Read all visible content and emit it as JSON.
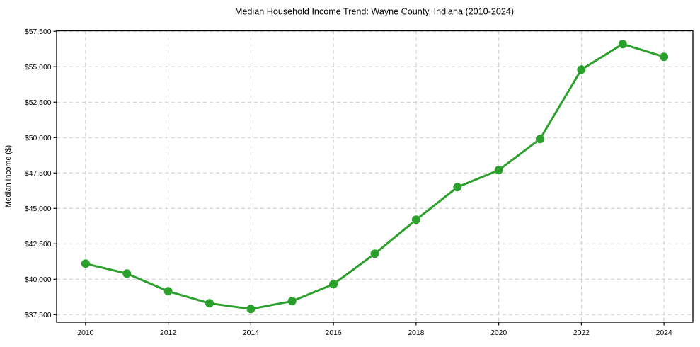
{
  "chart_data": {
    "type": "line",
    "title": "Median Household Income Trend: Wayne County, Indiana (2010-2024)",
    "xlabel": "",
    "ylabel": "Median Income ($)",
    "x": [
      2010,
      2011,
      2012,
      2013,
      2014,
      2015,
      2016,
      2017,
      2018,
      2019,
      2020,
      2021,
      2022,
      2023,
      2024
    ],
    "values": [
      41100,
      40400,
      39150,
      38300,
      37900,
      38450,
      39650,
      41800,
      44200,
      46500,
      47700,
      49900,
      54800,
      56600,
      55700
    ],
    "xlim": [
      2009.3,
      2024.7
    ],
    "ylim": [
      36965,
      57535
    ],
    "xticks": {
      "values": [
        2010,
        2012,
        2014,
        2016,
        2018,
        2020,
        2022,
        2024
      ],
      "labels": [
        "2010",
        "2012",
        "2014",
        "2016",
        "2018",
        "2020",
        "2022",
        "2024"
      ]
    },
    "yticks": {
      "values": [
        37500,
        40000,
        42500,
        45000,
        47500,
        50000,
        52500,
        55000,
        57500
      ],
      "labels": [
        "$37,500",
        "$40,000",
        "$42,500",
        "$45,000",
        "$47,500",
        "$50,000",
        "$52,500",
        "$55,000",
        "$57,500"
      ]
    },
    "grid": "dashed-both-axes",
    "legend": "none",
    "marker": "circle",
    "colors": {
      "line": "#2ca02c",
      "marker": "#2ca02c",
      "grid": "#c9c9c9",
      "axis": "#000000",
      "text": "#000000",
      "background": "#ffffff"
    }
  }
}
